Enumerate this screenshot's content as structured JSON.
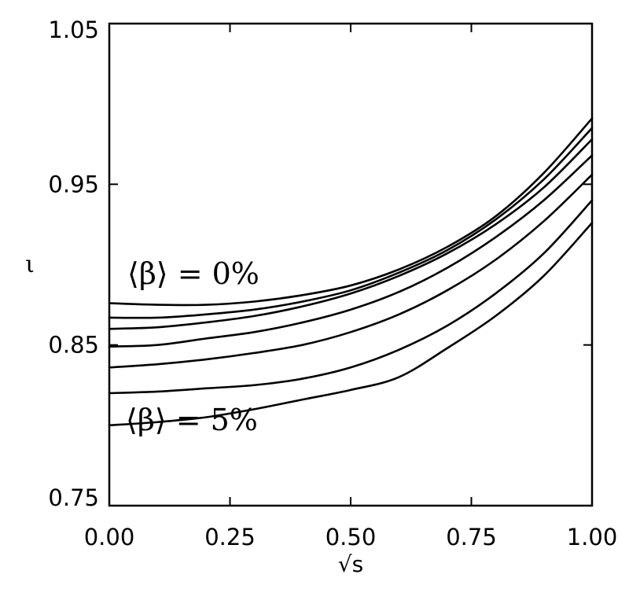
{
  "chart_data": {
    "type": "line",
    "title": "",
    "xlabel": "√s",
    "ylabel": "ι",
    "xlim": [
      0.0,
      1.0
    ],
    "ylim": [
      0.75,
      1.05
    ],
    "xticks": [
      "0.00",
      "0.25",
      "0.50",
      "0.75",
      "1.00"
    ],
    "yticks": [
      "0.75",
      "0.85",
      "0.95",
      "1.05"
    ],
    "grid": false,
    "x": [
      0.0,
      0.1,
      0.2,
      0.3,
      0.4,
      0.5,
      0.6,
      0.7,
      0.8,
      0.9,
      1.0
    ],
    "series": [
      {
        "values": [
          0.876,
          0.875,
          0.875,
          0.877,
          0.881,
          0.887,
          0.897,
          0.911,
          0.93,
          0.957,
          0.991
        ]
      },
      {
        "values": [
          0.867,
          0.867,
          0.869,
          0.872,
          0.877,
          0.884,
          0.895,
          0.909,
          0.928,
          0.953,
          0.985
        ]
      },
      {
        "values": [
          0.86,
          0.861,
          0.864,
          0.868,
          0.874,
          0.882,
          0.893,
          0.907,
          0.925,
          0.948,
          0.978
        ]
      },
      {
        "values": [
          0.849,
          0.85,
          0.854,
          0.858,
          0.864,
          0.872,
          0.883,
          0.898,
          0.917,
          0.94,
          0.968
        ]
      },
      {
        "values": [
          0.836,
          0.838,
          0.841,
          0.845,
          0.85,
          0.858,
          0.869,
          0.884,
          0.903,
          0.927,
          0.956
        ]
      },
      {
        "values": [
          0.82,
          0.821,
          0.823,
          0.825,
          0.829,
          0.836,
          0.847,
          0.862,
          0.882,
          0.907,
          0.94
        ]
      },
      {
        "values": [
          0.8,
          0.802,
          0.805,
          0.81,
          0.816,
          0.822,
          0.83,
          0.848,
          0.868,
          0.893,
          0.926
        ]
      }
    ],
    "annotations": [
      {
        "text": "⟨β⟩ = 0%"
      },
      {
        "text": "⟨β⟩ = 5%"
      }
    ]
  }
}
